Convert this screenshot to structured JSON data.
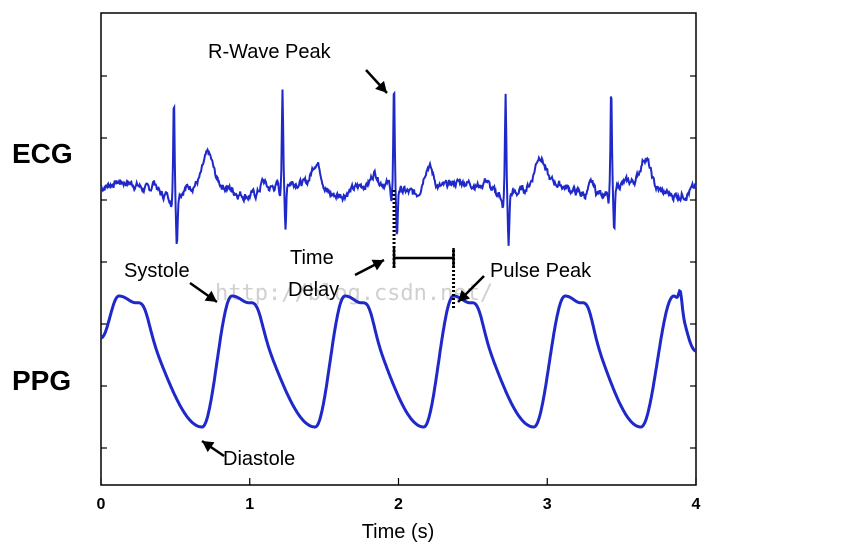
{
  "chart_data": {
    "type": "line",
    "xlabel": "Time (s)",
    "xlim": [
      0,
      4
    ],
    "x_ticks": [
      "0",
      "1",
      "2",
      "3",
      "4"
    ],
    "series": [
      {
        "name": "ECG",
        "color": "#1f28c8",
        "baseline": 0,
        "r_peak_times": [
          0.49,
          1.22,
          1.97,
          2.72,
          3.43
        ],
        "r_peak_amplitude": 1.0,
        "s_trough_amplitude": -0.42
      },
      {
        "name": "PPG",
        "color": "#1f28c8",
        "systolic_peak_times": [
          0.12,
          0.88,
          1.64,
          2.37,
          3.12,
          3.85
        ],
        "diastolic_trough_times": [
          0.68,
          1.44,
          2.17,
          2.91,
          3.63
        ],
        "peak_value": 1.0,
        "trough_value": 0.0
      }
    ],
    "annotations": {
      "r_wave_peak": "R-Wave Peak",
      "systole": "Systole",
      "diastole": "Diastole",
      "time_delay_line1": "Time",
      "time_delay_line2": "Delay",
      "pulse_peak": "Pulse Peak",
      "time_delay_start": 1.97,
      "time_delay_end": 2.37
    },
    "watermark": "http://blog.csdn.net/",
    "grid": false
  }
}
